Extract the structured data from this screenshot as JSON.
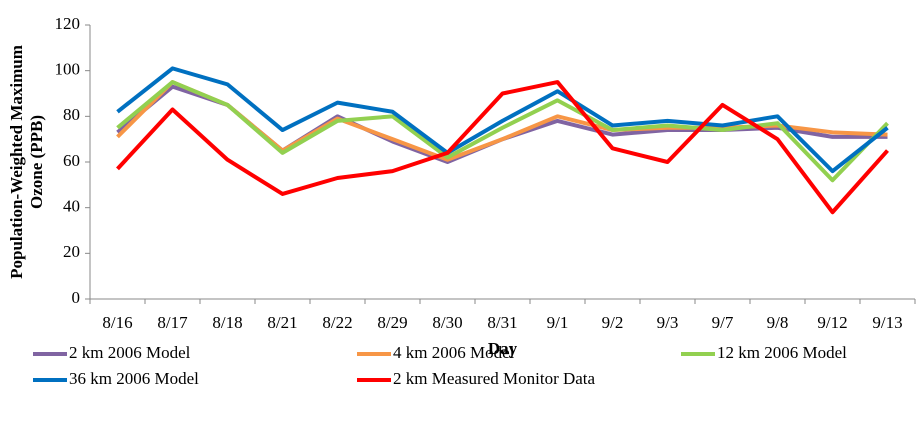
{
  "chart_data": {
    "type": "line",
    "xlabel": "Day",
    "ylabel": [
      "Population-Weighted Maximum",
      "Ozone (PPB)"
    ],
    "categories": [
      "8/16",
      "8/17",
      "8/18",
      "8/21",
      "8/22",
      "8/29",
      "8/30",
      "8/31",
      "9/1",
      "9/2",
      "9/3",
      "9/7",
      "9/8",
      "9/12",
      "9/13"
    ],
    "series": [
      {
        "name": "2 km 2006 Model",
        "color": "#8064a2",
        "values": [
          73,
          93,
          85,
          65,
          80,
          69,
          60,
          70,
          78,
          72,
          74,
          74,
          75,
          71,
          71
        ]
      },
      {
        "name": "4 km 2006 Model",
        "color": "#f79646",
        "values": [
          71,
          95,
          85,
          65,
          79,
          70,
          61,
          70,
          80,
          74,
          75,
          75,
          76,
          73,
          72
        ]
      },
      {
        "name": "12 km 2006 Model",
        "color": "#92d050",
        "values": [
          75,
          95,
          85,
          64,
          78,
          80,
          62,
          75,
          87,
          74,
          76,
          74,
          77,
          52,
          77
        ]
      },
      {
        "name": "36 km 2006 Model",
        "color": "#0070c0",
        "values": [
          82,
          101,
          94,
          74,
          86,
          82,
          64,
          78,
          91,
          76,
          78,
          76,
          80,
          56,
          75
        ]
      },
      {
        "name": "2 km Measured Monitor Data",
        "color": "#ff0000",
        "values": [
          57,
          83,
          61,
          46,
          53,
          56,
          64,
          90,
          95,
          66,
          60,
          85,
          70,
          38,
          65
        ]
      }
    ],
    "ylim": [
      0,
      120
    ],
    "yticks": [
      0,
      20,
      40,
      60,
      80,
      100,
      120
    ],
    "grid": false
  }
}
